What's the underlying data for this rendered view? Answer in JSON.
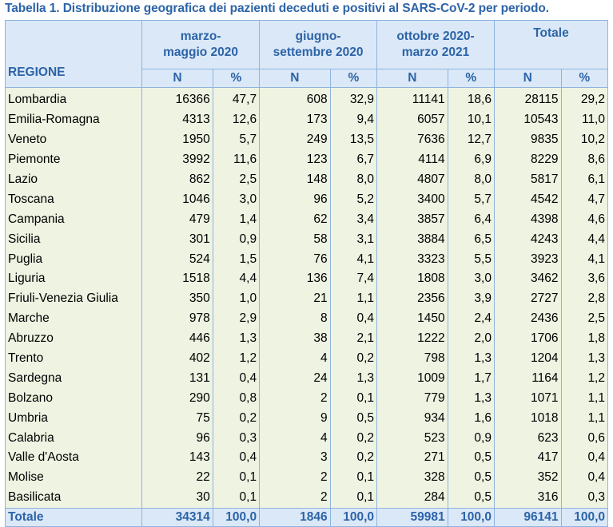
{
  "title": "Tabella 1. Distribuzione geografica dei pazienti deceduti e positivi al SARS-CoV-2 per periodo.",
  "header": {
    "region": "REGIONE",
    "periods": [
      {
        "line1": "marzo-",
        "line2": "maggio 2020"
      },
      {
        "line1": "giugno-",
        "line2": "settembre 2020"
      },
      {
        "line1": "ottobre 2020-",
        "line2": "marzo 2021"
      },
      {
        "line1": "Totale",
        "line2": ""
      }
    ],
    "n": "N",
    "pct": "%"
  },
  "rows": [
    {
      "region": "Lombardia",
      "v": [
        "16366",
        "47,7",
        "608",
        "32,9",
        "11141",
        "18,6",
        "28115",
        "29,2"
      ]
    },
    {
      "region": "Emilia-Romagna",
      "v": [
        "4313",
        "12,6",
        "173",
        "9,4",
        "6057",
        "10,1",
        "10543",
        "11,0"
      ]
    },
    {
      "region": "Veneto",
      "v": [
        "1950",
        "5,7",
        "249",
        "13,5",
        "7636",
        "12,7",
        "9835",
        "10,2"
      ]
    },
    {
      "region": "Piemonte",
      "v": [
        "3992",
        "11,6",
        "123",
        "6,7",
        "4114",
        "6,9",
        "8229",
        "8,6"
      ]
    },
    {
      "region": "Lazio",
      "v": [
        "862",
        "2,5",
        "148",
        "8,0",
        "4807",
        "8,0",
        "5817",
        "6,1"
      ]
    },
    {
      "region": "Toscana",
      "v": [
        "1046",
        "3,0",
        "96",
        "5,2",
        "3400",
        "5,7",
        "4542",
        "4,7"
      ]
    },
    {
      "region": "Campania",
      "v": [
        "479",
        "1,4",
        "62",
        "3,4",
        "3857",
        "6,4",
        "4398",
        "4,6"
      ]
    },
    {
      "region": "Sicilia",
      "v": [
        "301",
        "0,9",
        "58",
        "3,1",
        "3884",
        "6,5",
        "4243",
        "4,4"
      ]
    },
    {
      "region": "Puglia",
      "v": [
        "524",
        "1,5",
        "76",
        "4,1",
        "3323",
        "5,5",
        "3923",
        "4,1"
      ]
    },
    {
      "region": "Liguria",
      "v": [
        "1518",
        "4,4",
        "136",
        "7,4",
        "1808",
        "3,0",
        "3462",
        "3,6"
      ]
    },
    {
      "region": "Friuli-Venezia Giulia",
      "v": [
        "350",
        "1,0",
        "21",
        "1,1",
        "2356",
        "3,9",
        "2727",
        "2,8"
      ]
    },
    {
      "region": "Marche",
      "v": [
        "978",
        "2,9",
        "8",
        "0,4",
        "1450",
        "2,4",
        "2436",
        "2,5"
      ]
    },
    {
      "region": "Abruzzo",
      "v": [
        "446",
        "1,3",
        "38",
        "2,1",
        "1222",
        "2,0",
        "1706",
        "1,8"
      ]
    },
    {
      "region": "Trento",
      "v": [
        "402",
        "1,2",
        "4",
        "0,2",
        "798",
        "1,3",
        "1204",
        "1,3"
      ]
    },
    {
      "region": "Sardegna",
      "v": [
        "131",
        "0,4",
        "24",
        "1,3",
        "1009",
        "1,7",
        "1164",
        "1,2"
      ]
    },
    {
      "region": "Bolzano",
      "v": [
        "290",
        "0,8",
        "2",
        "0,1",
        "779",
        "1,3",
        "1071",
        "1,1"
      ]
    },
    {
      "region": "Umbria",
      "v": [
        "75",
        "0,2",
        "9",
        "0,5",
        "934",
        "1,6",
        "1018",
        "1,1"
      ]
    },
    {
      "region": "Calabria",
      "v": [
        "96",
        "0,3",
        "4",
        "0,2",
        "523",
        "0,9",
        "623",
        "0,6"
      ]
    },
    {
      "region": "Valle d'Aosta",
      "v": [
        "143",
        "0,4",
        "3",
        "0,2",
        "271",
        "0,5",
        "417",
        "0,4"
      ]
    },
    {
      "region": "Molise",
      "v": [
        "22",
        "0,1",
        "2",
        "0,1",
        "328",
        "0,5",
        "352",
        "0,4"
      ]
    },
    {
      "region": "Basilicata",
      "v": [
        "30",
        "0,1",
        "2",
        "0,1",
        "284",
        "0,5",
        "316",
        "0,3"
      ]
    }
  ],
  "total": {
    "label": "Totale",
    "v": [
      "34314",
      "100,0",
      "1846",
      "100,0",
      "59981",
      "100,0",
      "96141",
      "100,0"
    ]
  },
  "colors": {
    "header_text": "#2c64a8",
    "header_bg": "#dbe8f7",
    "body_bg": "#eef3e2",
    "border": "#8fb3df"
  }
}
